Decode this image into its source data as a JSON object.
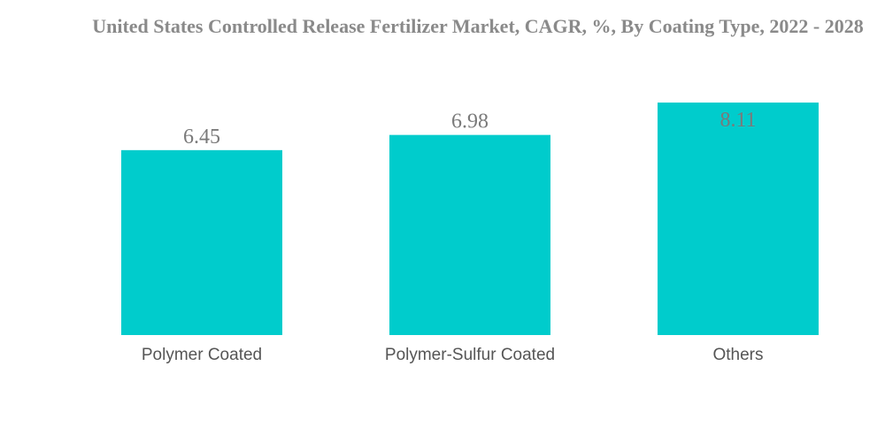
{
  "chart_data": {
    "type": "bar",
    "title": "United States Controlled Release Fertilizer Market, CAGR, %, By Coating Type, 2022 - 2028",
    "categories": [
      "Polymer Coated",
      "Polymer-Sulfur Coated",
      "Others"
    ],
    "values": [
      6.45,
      6.98,
      8.11
    ],
    "value_labels": [
      "6.45",
      "6.98",
      "8.11"
    ],
    "xlabel": "",
    "ylabel": "",
    "ylim": [
      0,
      8.11
    ],
    "grid": false,
    "legend": "none",
    "colors": {
      "bar": "#00cccc",
      "title": "#8a8a8a",
      "value_label": "#7a7a7a",
      "category_label": "#555555"
    }
  }
}
